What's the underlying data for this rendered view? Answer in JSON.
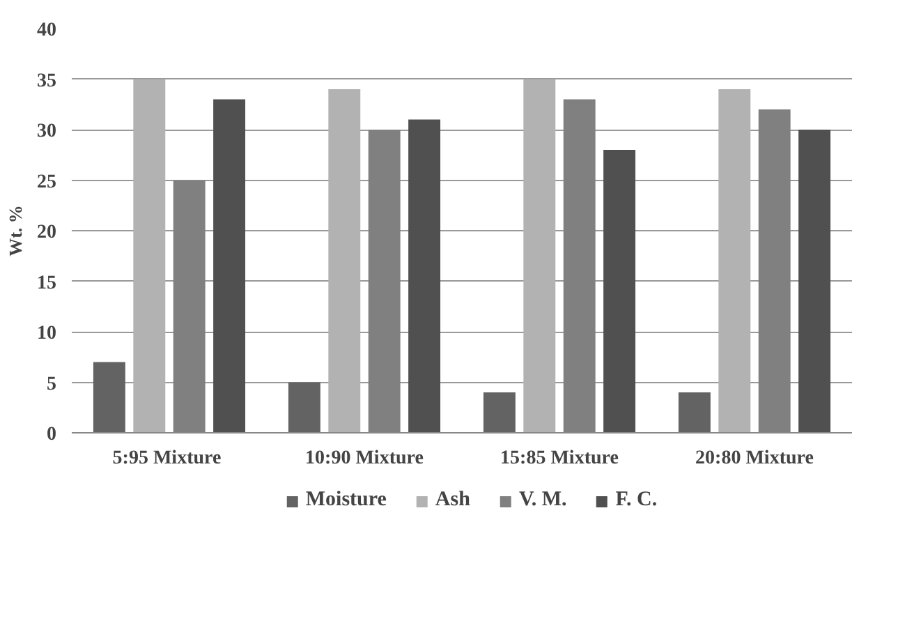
{
  "chart_data": {
    "type": "bar",
    "ylabel": "Wt. %",
    "categories": [
      "5:95  Mixture",
      "10:90 Mixture",
      "15:85 Mixture",
      "20:80 Mixture"
    ],
    "series": [
      {
        "name": "Moisture",
        "color": "#636363",
        "values": [
          7,
          5,
          4,
          4
        ]
      },
      {
        "name": "Ash",
        "color": "#b2b2b2",
        "values": [
          35,
          34,
          35,
          34
        ]
      },
      {
        "name": "V. M.",
        "color": "#808080",
        "values": [
          25,
          30,
          33,
          32
        ]
      },
      {
        "name": "F. C.",
        "color": "#505050",
        "values": [
          33,
          31,
          28,
          30
        ]
      }
    ],
    "ylim": [
      0,
      40
    ],
    "yticks": [
      0,
      5,
      10,
      15,
      20,
      25,
      30,
      35,
      40
    ],
    "grid": "y",
    "legend": "bottom"
  }
}
